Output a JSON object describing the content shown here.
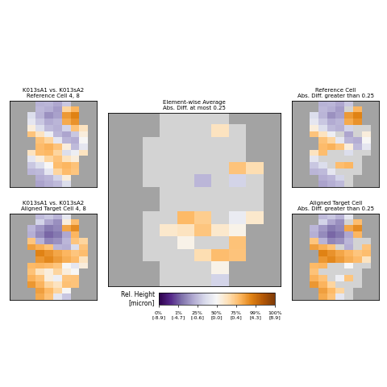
{
  "chart_data": {
    "type": "heatmap",
    "panels": {
      "reference": "K013sA1 vs. K013sA2\nReference Cell 4, 8",
      "target": "K013sA1 vs. K013sA2\nAligned Target Cell 4, 8",
      "average": "Element-wise Average\nAbs. Diff. at most 0.25",
      "reference_filtered": "Reference Cell\nAbs. Diff. greater than 0.25",
      "target_filtered": "Aligned Target Cell\nAbs. Diff. greater than 0.25"
    },
    "threshold": 0.25,
    "tick_labels": false,
    "reference_cells": [
      [
        null,
        null,
        null,
        -1.0,
        -0.8,
        -1.5,
        -0.5,
        null,
        null,
        null
      ],
      [
        null,
        null,
        null,
        -0.7,
        -1.2,
        -2.0,
        0.3,
        1.2,
        null,
        null
      ],
      [
        null,
        null,
        -0.3,
        -0.9,
        -2.5,
        -1.8,
        2.5,
        3.5,
        null,
        null
      ],
      [
        null,
        null,
        -0.2,
        -0.5,
        -1.4,
        -0.9,
        1.8,
        2.8,
        null,
        null
      ],
      [
        null,
        null,
        0.1,
        -0.3,
        -0.6,
        -1.1,
        -0.4,
        0.6,
        0.2,
        null
      ],
      [
        null,
        null,
        0.5,
        0.2,
        -0.1,
        -0.7,
        -1.6,
        -0.5,
        0.1,
        null
      ],
      [
        null,
        null,
        null,
        0.6,
        0.3,
        -0.2,
        -0.9,
        -1.3,
        0.0,
        null
      ],
      [
        null,
        null,
        null,
        0.9,
        1.4,
        0.5,
        0.1,
        -0.6,
        -0.2,
        null
      ],
      [
        null,
        null,
        0.2,
        0.8,
        1.1,
        0.3,
        -0.3,
        -0.1,
        0.2,
        null
      ],
      [
        null,
        null,
        -0.2,
        0.1,
        0.3,
        0.5,
        0.2,
        0.1,
        null,
        null
      ],
      [
        null,
        null,
        -0.5,
        -0.3,
        0.0,
        0.8,
        1.2,
        0.6,
        null,
        null
      ],
      [
        null,
        null,
        -0.9,
        -0.6,
        -0.2,
        0.3,
        0.9,
        0.4,
        null,
        null
      ],
      [
        null,
        null,
        null,
        -1.3,
        -0.8,
        -0.4,
        0.1,
        null,
        null,
        null
      ],
      [
        null,
        null,
        null,
        -1.7,
        -1.2,
        -0.6,
        -0.3,
        null,
        null,
        null
      ]
    ],
    "target_cells": [
      [
        null,
        null,
        null,
        -0.6,
        -0.5,
        -1.0,
        -0.2,
        null,
        null,
        null
      ],
      [
        null,
        null,
        null,
        -0.4,
        -1.5,
        -2.6,
        0.1,
        0.8,
        null,
        null
      ],
      [
        null,
        null,
        -0.8,
        -2.2,
        -3.5,
        -2.9,
        1.9,
        3.0,
        null,
        null
      ],
      [
        null,
        null,
        -1.2,
        -2.8,
        -4.2,
        -3.6,
        -1.5,
        1.2,
        null,
        null
      ],
      [
        null,
        null,
        0.4,
        -1.0,
        -3.0,
        -2.5,
        -0.8,
        0.4,
        0.3,
        null
      ],
      [
        null,
        null,
        2.2,
        1.5,
        0.6,
        -0.9,
        -1.2,
        -0.3,
        0.5,
        null
      ],
      [
        null,
        null,
        null,
        3.5,
        2.8,
        1.9,
        1.2,
        0.4,
        0.8,
        null
      ],
      [
        null,
        null,
        null,
        2.6,
        3.2,
        2.4,
        1.6,
        0.9,
        0.2,
        null
      ],
      [
        null,
        null,
        1.0,
        1.2,
        0.9,
        0.4,
        0.0,
        -0.2,
        0.1,
        null
      ],
      [
        null,
        null,
        0.6,
        0.2,
        0.1,
        0.3,
        0.1,
        0.0,
        null,
        null
      ],
      [
        null,
        null,
        1.4,
        0.6,
        0.1,
        -0.1,
        0.4,
        0.5,
        null,
        null
      ],
      [
        null,
        null,
        2.6,
        1.3,
        0.3,
        0.2,
        0.7,
        0.5,
        null,
        null
      ],
      [
        null,
        null,
        null,
        2.2,
        1.0,
        0.3,
        0.0,
        null,
        null,
        null
      ],
      [
        null,
        null,
        null,
        1.8,
        0.6,
        -0.2,
        -0.5,
        null,
        null,
        null
      ]
    ],
    "colorbar": {
      "label": "Rel. Height\n[micron]",
      "range": [
        -8.9,
        8.9
      ],
      "ticks": [
        {
          "value": -8.9,
          "label": "0%\n[-8.9]"
        },
        {
          "value": -4.7,
          "label": "1%\n[-4.7]"
        },
        {
          "value": -0.6,
          "label": "25%\n[-0.6]"
        },
        {
          "value": 0.0,
          "label": "50%\n[0.0]"
        },
        {
          "value": 0.4,
          "label": "75%\n[0.4]"
        },
        {
          "value": 4.3,
          "label": "99%\n[4.3]"
        },
        {
          "value": 8.9,
          "label": "100%\n[8.9]"
        }
      ]
    }
  }
}
